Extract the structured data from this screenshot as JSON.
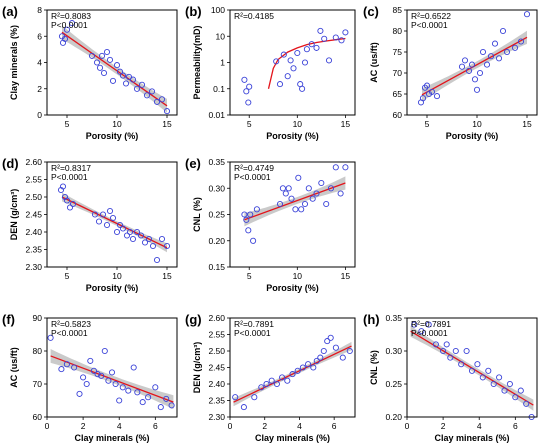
{
  "chart_data": [
    {
      "panel": "(a)",
      "type": "scatter",
      "stats": [
        "R²=0.8083",
        "P<0.0001"
      ],
      "xlabel": "Porosity (%)",
      "ylabel": "Clay minerals (%)",
      "xlim": [
        3,
        16
      ],
      "ylim": [
        0,
        8
      ],
      "xticks": [
        5,
        10,
        15
      ],
      "yticks": [
        0,
        2,
        4,
        6,
        8
      ],
      "fit": {
        "x": [
          4.5,
          15
        ],
        "y": [
          6.3,
          0.7
        ]
      },
      "ci": 0.5,
      "x": [
        4.5,
        4.6,
        4.8,
        5.0,
        5.5,
        7.5,
        8.0,
        8.3,
        8.5,
        8.7,
        9.0,
        9.3,
        9.6,
        10.0,
        10.3,
        10.6,
        10.9,
        11.2,
        11.6,
        12.0,
        12.5,
        13.0,
        13.5,
        14.0,
        14.5,
        15.0
      ],
      "y": [
        6.0,
        5.5,
        5.8,
        6.5,
        7.0,
        4.5,
        4.0,
        3.6,
        4.5,
        3.2,
        4.8,
        4.2,
        2.6,
        3.8,
        3.3,
        3.0,
        2.4,
        2.9,
        2.7,
        2.0,
        2.3,
        1.5,
        1.8,
        1.0,
        1.2,
        0.3
      ]
    },
    {
      "panel": "(b)",
      "type": "scatter",
      "stats": [
        "R²=0.4185"
      ],
      "xlabel": "Porosity (%)",
      "ylabel": "Permeability(mD)",
      "yscale": "log",
      "xlim": [
        3,
        16
      ],
      "ylim": [
        0.01,
        100
      ],
      "xticks": [
        5,
        10,
        15
      ],
      "yticks": [
        0.01,
        0.1,
        1,
        10,
        100
      ],
      "yticklabels": [
        "0.01",
        "0.1",
        "1",
        "10",
        "100"
      ],
      "fit_curve": {
        "x": [
          7,
          7.5,
          8,
          9,
          10,
          11,
          12,
          13,
          14,
          15
        ],
        "y": [
          0.1,
          0.6,
          1.3,
          2.5,
          3.6,
          4.8,
          5.8,
          6.6,
          7.4,
          8.2
        ]
      },
      "x": [
        4.5,
        4.7,
        4.9,
        5.0,
        7.8,
        8.2,
        8.6,
        9.0,
        9.3,
        9.6,
        10.0,
        10.3,
        10.5,
        10.8,
        11.0,
        11.5,
        12.0,
        12.4,
        12.8,
        13.3,
        14.0,
        14.6,
        15.0
      ],
      "y": [
        0.22,
        0.08,
        0.03,
        0.12,
        1.1,
        0.15,
        2.0,
        0.3,
        1.2,
        0.6,
        2.3,
        0.15,
        0.1,
        1.0,
        3.2,
        5.0,
        3.6,
        16.0,
        8.0,
        1.2,
        9.0,
        7.0,
        14.0
      ]
    },
    {
      "panel": "(c)",
      "type": "scatter",
      "stats": [
        "R²=0.6522",
        "P<0.0001"
      ],
      "xlabel": "Porosity (%)",
      "ylabel": "AC (us/ft)",
      "xlim": [
        3,
        16
      ],
      "ylim": [
        60,
        85
      ],
      "xticks": [
        5,
        10,
        15
      ],
      "yticks": [
        60,
        65,
        70,
        75,
        80,
        85
      ],
      "fit": {
        "x": [
          4.5,
          15
        ],
        "y": [
          64.8,
          78.5
        ]
      },
      "ci": 1.5,
      "x": [
        4.4,
        4.6,
        4.8,
        5.0,
        5.2,
        5.5,
        6.0,
        8.5,
        8.8,
        9.2,
        9.5,
        9.8,
        10.0,
        10.3,
        10.6,
        11.0,
        11.4,
        11.8,
        12.2,
        12.6,
        13.0,
        13.8,
        14.4,
        15.0
      ],
      "y": [
        63.0,
        64.0,
        66.5,
        67.0,
        65.0,
        65.5,
        64.5,
        71.5,
        73.0,
        70.5,
        72.0,
        68.5,
        66.0,
        70.0,
        75.0,
        72.0,
        74.0,
        77.0,
        73.5,
        80.0,
        75.0,
        76.0,
        77.5,
        84.0
      ]
    },
    {
      "panel": "(d)",
      "type": "scatter",
      "stats": [
        "R²=0.8317",
        "P<0.0001"
      ],
      "xlabel": "Porosity (%)",
      "ylabel": "DEN (g/cm³)",
      "xlim": [
        3,
        16
      ],
      "ylim": [
        2.3,
        2.6
      ],
      "xticks": [
        5,
        10,
        15
      ],
      "yticks": [
        2.3,
        2.35,
        2.4,
        2.45,
        2.5,
        2.55,
        2.6
      ],
      "yticklabels": [
        "2.30",
        "2.35",
        "2.40",
        "2.45",
        "2.50",
        "2.55",
        "2.60"
      ],
      "fit": {
        "x": [
          4.5,
          15
        ],
        "y": [
          2.5,
          2.355
        ]
      },
      "ci": 0.012,
      "x": [
        4.4,
        4.6,
        4.8,
        5.0,
        5.3,
        5.6,
        7.8,
        8.2,
        8.6,
        9.0,
        9.3,
        9.6,
        10.0,
        10.3,
        10.6,
        11.0,
        11.3,
        11.6,
        12.0,
        12.4,
        12.8,
        13.2,
        13.6,
        14.0,
        14.5,
        15.0
      ],
      "y": [
        2.52,
        2.53,
        2.5,
        2.49,
        2.47,
        2.48,
        2.45,
        2.43,
        2.45,
        2.42,
        2.46,
        2.44,
        2.4,
        2.42,
        2.41,
        2.39,
        2.4,
        2.38,
        2.4,
        2.39,
        2.37,
        2.38,
        2.36,
        2.32,
        2.38,
        2.36
      ]
    },
    {
      "panel": "(e)",
      "type": "scatter",
      "stats": [
        "R²=0.4749",
        "P<0.0001"
      ],
      "xlabel": "Porosity (%)",
      "ylabel": "CNL (%)",
      "xlim": [
        3,
        16
      ],
      "ylim": [
        0.15,
        0.35
      ],
      "xticks": [
        5,
        10,
        15
      ],
      "yticks": [
        0.15,
        0.2,
        0.25,
        0.3,
        0.35
      ],
      "yticklabels": [
        "0.15",
        "0.20",
        "0.25",
        "0.30",
        "0.35"
      ],
      "fit": {
        "x": [
          4.5,
          15
        ],
        "y": [
          0.24,
          0.31
        ]
      },
      "ci": 0.012,
      "x": [
        4.5,
        4.7,
        4.9,
        5.1,
        5.4,
        5.8,
        8.2,
        8.5,
        8.8,
        9.1,
        9.4,
        9.8,
        10.1,
        10.4,
        10.8,
        11.2,
        11.6,
        12.0,
        12.5,
        13.0,
        13.5,
        14.0,
        14.5,
        15.0
      ],
      "y": [
        0.25,
        0.24,
        0.22,
        0.25,
        0.2,
        0.26,
        0.27,
        0.3,
        0.29,
        0.3,
        0.28,
        0.26,
        0.32,
        0.26,
        0.27,
        0.3,
        0.28,
        0.29,
        0.31,
        0.27,
        0.3,
        0.34,
        0.29,
        0.34
      ]
    },
    {
      "panel": "(f)",
      "type": "scatter",
      "stats": [
        "R²=0.5823",
        "P<0.0001"
      ],
      "xlabel": "Clay minerals (%)",
      "ylabel": "AC (us/ft)",
      "xlim": [
        0,
        7.2
      ],
      "ylim": [
        60,
        90
      ],
      "xticks": [
        0,
        2,
        4,
        6
      ],
      "yticks": [
        60,
        70,
        80,
        90
      ],
      "fit": {
        "x": [
          0.2,
          7
        ],
        "y": [
          78.5,
          64.5
        ]
      },
      "ci": 2.0,
      "x": [
        0.2,
        0.8,
        1.1,
        1.5,
        1.8,
        2.0,
        2.2,
        2.4,
        2.6,
        2.8,
        3.0,
        3.2,
        3.4,
        3.6,
        3.8,
        4.0,
        4.2,
        4.5,
        4.8,
        5.0,
        5.3,
        5.6,
        6.0,
        6.3,
        6.6,
        6.9
      ],
      "y": [
        84.0,
        74.5,
        76.0,
        75.0,
        67.0,
        72.0,
        70.0,
        77.0,
        74.0,
        73.0,
        72.5,
        80.0,
        71.0,
        73.5,
        70.0,
        65.0,
        69.0,
        68.0,
        75.0,
        67.5,
        64.5,
        66.0,
        69.0,
        63.0,
        65.5,
        63.5
      ]
    },
    {
      "panel": "(g)",
      "type": "scatter",
      "stats": [
        "R²=0.7891",
        "P<0.0001"
      ],
      "xlabel": "Clay minerals (%)",
      "ylabel": "DEN (g/cm³)",
      "xlim": [
        0,
        7.2
      ],
      "ylim": [
        2.3,
        2.6
      ],
      "xticks": [
        0,
        2,
        4,
        6
      ],
      "yticks": [
        2.3,
        2.35,
        2.4,
        2.45,
        2.5,
        2.55,
        2.6
      ],
      "yticklabels": [
        "2.30",
        "2.35",
        "2.40",
        "2.45",
        "2.50",
        "2.55",
        "2.60"
      ],
      "fit": {
        "x": [
          0.2,
          7
        ],
        "y": [
          2.345,
          2.515
        ]
      },
      "ci": 0.012,
      "x": [
        0.3,
        0.8,
        1.4,
        1.8,
        2.1,
        2.4,
        2.7,
        3.0,
        3.3,
        3.6,
        3.9,
        4.2,
        4.5,
        4.8,
        5.0,
        5.2,
        5.4,
        5.6,
        5.8,
        6.1,
        6.5,
        6.9
      ],
      "y": [
        2.36,
        2.33,
        2.36,
        2.39,
        2.4,
        2.41,
        2.4,
        2.42,
        2.41,
        2.43,
        2.44,
        2.45,
        2.46,
        2.45,
        2.47,
        2.48,
        2.5,
        2.53,
        2.54,
        2.51,
        2.48,
        2.5
      ]
    },
    {
      "panel": "(h)",
      "type": "scatter",
      "stats": [
        "R²=0.7891",
        "P<0.0001"
      ],
      "xlabel": "Clay minerals (%)",
      "ylabel": "CNL (%)",
      "xlim": [
        0,
        7.2
      ],
      "ylim": [
        0.2,
        0.35
      ],
      "xticks": [
        0,
        2,
        4,
        6
      ],
      "yticks": [
        0.2,
        0.25,
        0.3,
        0.35
      ],
      "yticklabels": [
        "0.20",
        "0.25",
        "0.30",
        "0.35"
      ],
      "fit": {
        "x": [
          0.2,
          7
        ],
        "y": [
          0.33,
          0.218
        ]
      },
      "ci": 0.008,
      "x": [
        0.4,
        0.8,
        1.2,
        1.6,
        2.0,
        2.2,
        2.4,
        2.7,
        3.0,
        3.3,
        3.6,
        3.9,
        4.2,
        4.5,
        4.8,
        5.1,
        5.4,
        5.7,
        6.0,
        6.3,
        6.6,
        6.9
      ],
      "y": [
        0.34,
        0.33,
        0.34,
        0.31,
        0.3,
        0.31,
        0.29,
        0.3,
        0.28,
        0.3,
        0.27,
        0.28,
        0.26,
        0.27,
        0.25,
        0.26,
        0.24,
        0.25,
        0.23,
        0.24,
        0.22,
        0.2
      ]
    }
  ]
}
